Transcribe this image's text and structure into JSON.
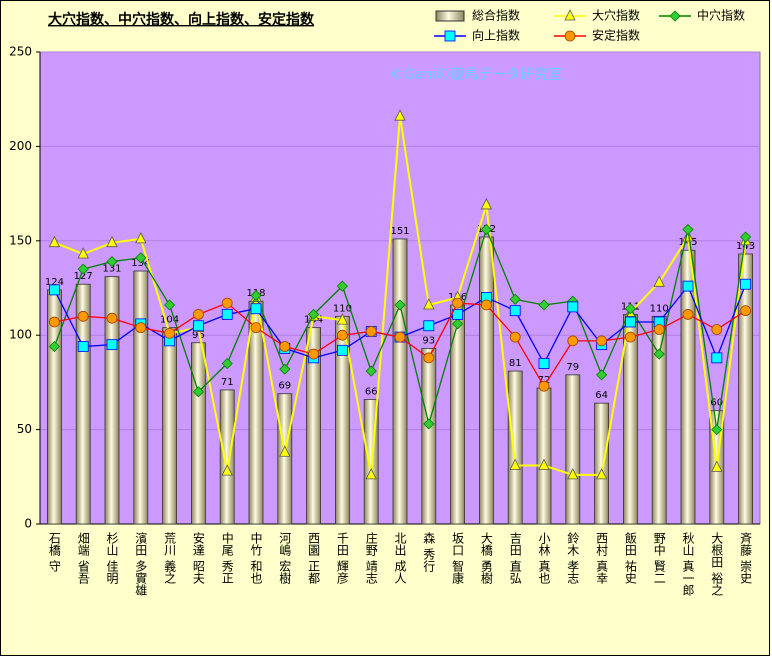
{
  "chart_data": {
    "type": "bar",
    "title": "大穴指数、中穴指数、向上指数、安定指数",
    "annotation": "©Ganiの競馬データ研究室",
    "categories": [
      "石橋 守",
      "畑端 省吾",
      "杉山 佳明",
      "濱田 多實雄",
      "荒川 義之",
      "安達 昭夫",
      "中尾 秀正",
      "中竹 和也",
      "河嶋 宏樹",
      "西園 正都",
      "千田 輝彦",
      "庄野 靖志",
      "北出 成人",
      "森 秀行",
      "坂口 智康",
      "大橋 勇樹",
      "吉田 直弘",
      "小林 真也",
      "鈴木 孝志",
      "西村 真幸",
      "飯田 祐史",
      "野中 賢二",
      "秋山 真一郎",
      "大根田 裕之",
      "斉藤 崇史"
    ],
    "series": [
      {
        "name": "総合指数",
        "type": "bar",
        "color": "#e8e0b0",
        "values": [
          124,
          127,
          131,
          134,
          104,
          96,
          71,
          118,
          69,
          104,
          110,
          66,
          151,
          93,
          116,
          152,
          81,
          72,
          79,
          64,
          111,
          110,
          145,
          60,
          143
        ]
      },
      {
        "name": "大穴指数",
        "type": "line",
        "marker": "triangle",
        "color": "#ffff00",
        "values": [
          149,
          143,
          149,
          151,
          101,
          104,
          28,
          120,
          38,
          110,
          108,
          26,
          216,
          116,
          120,
          169,
          31,
          31,
          26,
          26,
          112,
          128,
          152,
          30,
          150
        ]
      },
      {
        "name": "中穴指数",
        "type": "line",
        "marker": "diamond",
        "color": "#008000",
        "values": [
          94,
          135,
          139,
          141,
          116,
          70,
          85,
          121,
          82,
          111,
          126,
          81,
          116,
          53,
          106,
          156,
          119,
          116,
          118,
          79,
          114,
          90,
          156,
          50,
          152
        ]
      },
      {
        "name": "向上指数",
        "type": "line",
        "marker": "square",
        "color": "#0000ff",
        "values": [
          124,
          94,
          95,
          106,
          97,
          105,
          111,
          114,
          93,
          88,
          92,
          102,
          99,
          105,
          111,
          120,
          113,
          85,
          115,
          95,
          107,
          107,
          126,
          88,
          127
        ]
      },
      {
        "name": "安定指数",
        "type": "line",
        "marker": "circle",
        "color": "#ff0000",
        "values": [
          107,
          110,
          109,
          104,
          101,
          111,
          117,
          104,
          94,
          90,
          100,
          102,
          99,
          88,
          117,
          116,
          99,
          73,
          97,
          97,
          99,
          103,
          111,
          103,
          113
        ]
      }
    ],
    "ylim": [
      0,
      250
    ],
    "yticks": [
      0,
      50,
      100,
      150,
      200,
      250
    ],
    "grid": true
  }
}
